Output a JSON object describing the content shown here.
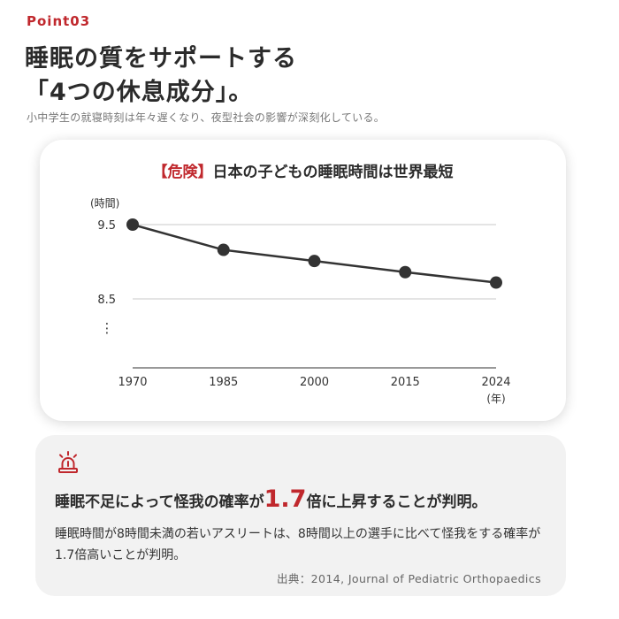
{
  "header": {
    "point_label": "Point03",
    "headline_line1": "睡眠の質をサポートする",
    "headline_line2": "「4つの休息成分」。",
    "subtitle": "小中学生の就寝時刻は年々遅くなり、夜型社会の影響が深刻化している。"
  },
  "card": {
    "title_danger": "【危険】",
    "title_rest": "日本の子どもの睡眠時間は世界最短"
  },
  "chart_data": {
    "type": "line",
    "ylabel": "(時間)",
    "xlabel_unit": "(年)",
    "categories": [
      "1970",
      "1985",
      "2000",
      "2015",
      "2024"
    ],
    "y_ticks": [
      "9.5",
      "8.5"
    ],
    "y_break_mark": "⋮",
    "series": [
      {
        "values": [
          9.5,
          9.16,
          9.01,
          8.86,
          8.72
        ]
      }
    ],
    "ylim": [
      8.5,
      9.5
    ],
    "axis_break_below": true,
    "grid": true,
    "line_color": "#333333"
  },
  "info": {
    "icon": "alarm-icon",
    "claim_pre": "睡眠不足によって怪我の確率が",
    "claim_value": "1.7",
    "claim_post": "倍に上昇することが判明。",
    "body": "睡眠時間が8時間未満の若いアスリートは、8時間以上の選手に比べて怪我をする確率が1.7倍高いことが判明。",
    "source": "出典：2014, Journal of Pediatric Orthopaedics"
  },
  "colors": {
    "accent": "#c0282d",
    "text": "#2b2b2b",
    "info_bg": "#f2f2f2"
  }
}
